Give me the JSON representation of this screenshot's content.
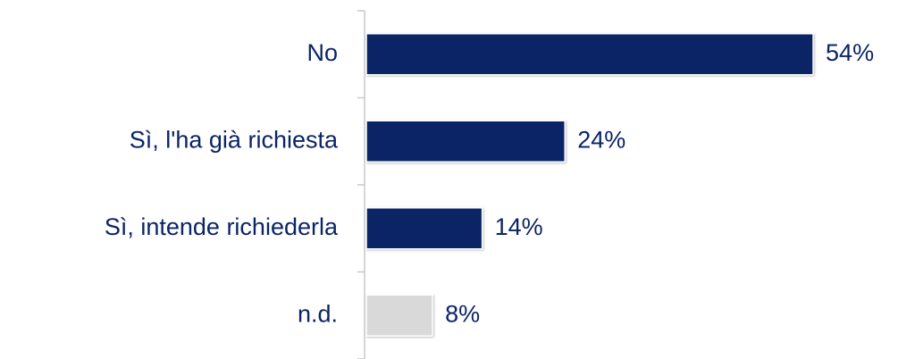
{
  "chart_data": {
    "type": "hbar",
    "categories": [
      "No",
      "Sì, l'ha già richiesta",
      "Sì, intende richiederla",
      "n.d."
    ],
    "values": [
      54,
      24,
      14,
      8
    ],
    "value_labels": [
      "54%",
      "24%",
      "14%",
      "8%"
    ],
    "colors": [
      "#0b2466",
      "#0b2466",
      "#0b2466",
      "#d9d9d9"
    ]
  }
}
